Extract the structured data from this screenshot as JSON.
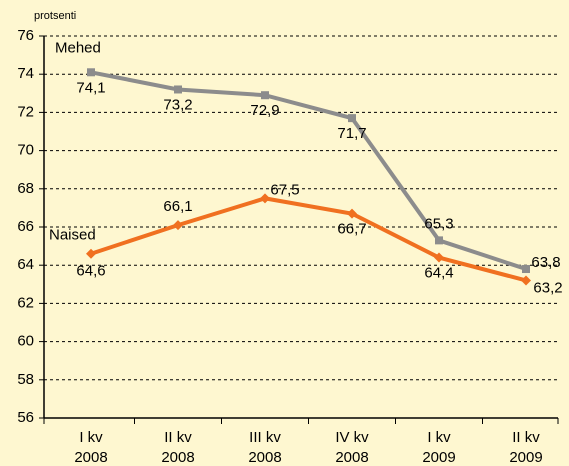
{
  "chart_data": {
    "type": "line",
    "y_axis_label": "protsenti",
    "categories": [
      [
        "I kv",
        "2008"
      ],
      [
        "II kv",
        "2008"
      ],
      [
        "III kv",
        "2008"
      ],
      [
        "IV kv",
        "2008"
      ],
      [
        "I kv",
        "2009"
      ],
      [
        "II kv",
        "2009"
      ]
    ],
    "series": [
      {
        "name": "Mehed",
        "color": "#8c8c8c",
        "marker": "square",
        "values": [
          74.1,
          73.2,
          72.9,
          71.7,
          65.3,
          63.8
        ],
        "value_labels": [
          "74,1",
          "73,2",
          "72,9",
          "71,7",
          "65,3",
          "63,8"
        ]
      },
      {
        "name": "Naised",
        "color": "#f07020",
        "marker": "diamond",
        "values": [
          64.6,
          66.1,
          67.5,
          66.7,
          64.4,
          63.2
        ],
        "value_labels": [
          "64,6",
          "66,1",
          "67,5",
          "66,7",
          "64,4",
          "63,2"
        ]
      }
    ],
    "ylim": [
      56,
      76
    ],
    "yticks": [
      56,
      58,
      60,
      62,
      64,
      66,
      68,
      70,
      72,
      74,
      76
    ],
    "grid": true
  }
}
